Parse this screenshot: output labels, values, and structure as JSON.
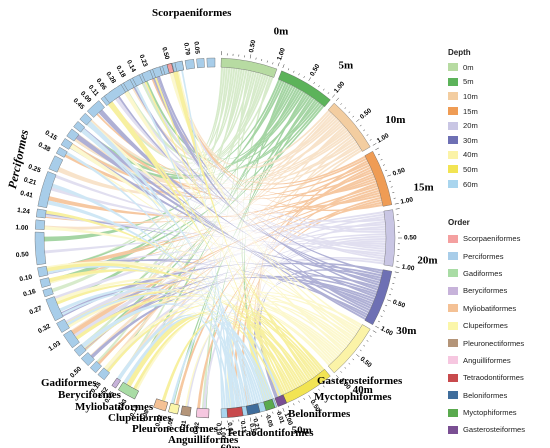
{
  "figure": {
    "depth_legend_title": "Depth",
    "order_legend_title": "Order"
  },
  "chart_data": {
    "type": "chord",
    "depth_groups": [
      {
        "name": "0m",
        "color": "#b7dba2"
      },
      {
        "name": "5m",
        "color": "#5cb35a"
      },
      {
        "name": "10m",
        "color": "#f3cda0"
      },
      {
        "name": "15m",
        "color": "#ef9c55"
      },
      {
        "name": "20m",
        "color": "#c9c6e4"
      },
      {
        "name": "30m",
        "color": "#6e70b4"
      },
      {
        "name": "40m",
        "color": "#fbf3a7"
      },
      {
        "name": "50m",
        "color": "#f2e453"
      },
      {
        "name": "60m",
        "color": "#a9d5ee"
      }
    ],
    "order_groups": [
      {
        "name": "Scorpaeniformes",
        "color": "#f4a0a0"
      },
      {
        "name": "Perciformes",
        "color": "#a8cde9"
      },
      {
        "name": "Gadiformes",
        "color": "#a9dca5"
      },
      {
        "name": "Beryciformes",
        "color": "#c7b3da"
      },
      {
        "name": "Myliobatiformes",
        "color": "#f4c195"
      },
      {
        "name": "Clupeiformes",
        "color": "#fbf6a9"
      },
      {
        "name": "Pleuronectiformes",
        "color": "#b49579"
      },
      {
        "name": "Anguilliformes",
        "color": "#f6c7e0"
      },
      {
        "name": "Tetraodontiformes",
        "color": "#c84a4d"
      },
      {
        "name": "Beloniformes",
        "color": "#3f6d9c"
      },
      {
        "name": "Myctophiformes",
        "color": "#5aaa4e"
      },
      {
        "name": "Gasterosteiformes",
        "color": "#7a4f93"
      }
    ],
    "sector_ticks": {
      "depth": [
        "0.50",
        "1.00"
      ],
      "scorpaeniformes": [
        "0.79"
      ],
      "perciformes_top": [
        "0.05",
        "0.50",
        "0.23",
        "0.14",
        "0.18",
        "0.28",
        "0.06",
        "0.11",
        "0.09",
        "0.45"
      ],
      "perciformes_left": [
        "0.15",
        "0.38",
        "0.25",
        "0.21",
        "0.41",
        "1.24",
        "1.00",
        "0.50",
        "0.10",
        "0.16",
        "0.27",
        "0.32",
        "1.03",
        "0.50"
      ],
      "gadiformes": [
        "0.16",
        "0.52",
        "0.05"
      ],
      "beryciformes": [
        "0.03"
      ],
      "myliobatiformes": [
        "0.13",
        "0.08"
      ],
      "clupeiformes": [
        "0.02",
        "0.02"
      ],
      "pleuronectiformes": [
        "0.31",
        "0.02"
      ],
      "anguilliformes": [
        "0.19",
        "0.04"
      ],
      "tetraodontiformes": [
        "0.11",
        "0.21"
      ],
      "beloniformes": [
        "0.05"
      ],
      "gasterosteiformes": [
        "0.01"
      ]
    }
  }
}
